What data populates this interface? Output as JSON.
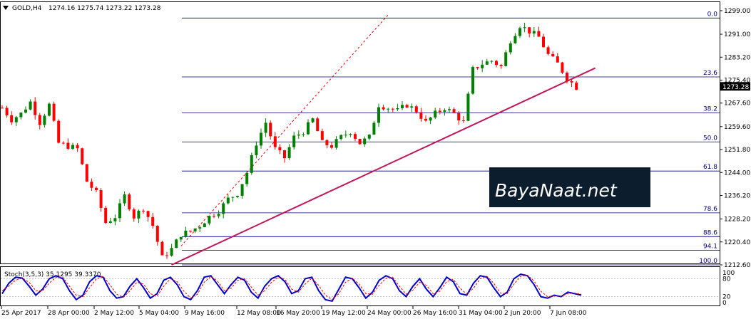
{
  "header": {
    "symbol": "GOLD,H4",
    "ohlc": "1274.16 1275.74 1273.22 1273.28"
  },
  "watermark": {
    "text": "BayaNaat.net"
  },
  "colors": {
    "background": "#ffffff",
    "bull_candle": "#008000",
    "bear_candle": "#ff0000",
    "trendline": "#c2185b",
    "fib_level": "#000080",
    "stoch_main": "#0000cc",
    "stoch_signal": "#ff0000",
    "price_label_bg": "#000000",
    "watermark_bg": "#0c1e2e"
  },
  "icons": {
    "collapse": "triangle-down-icon"
  },
  "chart_data": [
    {
      "type": "candlestick",
      "symbol": "GOLD",
      "timeframe": "H4",
      "y_axis_ticks": [
        "1299.00",
        "1291.00",
        "1283.20",
        "1275.40",
        "1267.60",
        "1259.60",
        "1251.80",
        "1244.00",
        "1236.20",
        "1228.20",
        "1220.40",
        "1212.60"
      ],
      "ylim": [
        1212.6,
        1299.0
      ],
      "current_price": "1273.28",
      "x_tick_labels": [
        "25 Apr 2017",
        "28 Apr 00:00",
        "2 May 12:00",
        "5 May 04:00",
        "9 May 16:00",
        "12 May 08:00",
        "16 May 20:00",
        "19 May 12:00",
        "24 May 00:00",
        "26 May 16:00",
        "31 May 04:00",
        "2 Jun 20:00",
        "7 Jun 08:00"
      ],
      "fibonacci_levels": [
        {
          "label": "0.0",
          "price": 1296.5
        },
        {
          "label": "23.6",
          "price": 1276.5
        },
        {
          "label": "38.2",
          "price": 1264.3
        },
        {
          "label": "50.0",
          "price": 1254.4
        },
        {
          "label": "61.8",
          "price": 1244.5
        },
        {
          "label": "78.6",
          "price": 1230.3
        },
        {
          "label": "88.6",
          "price": 1222.2
        },
        {
          "label": "94.1",
          "price": 1217.6
        },
        {
          "label": "100.0",
          "price": 1212.6
        }
      ],
      "close_path": [
        [
          0,
          1266
        ],
        [
          2,
          1262
        ],
        [
          4,
          1264
        ],
        [
          6,
          1268
        ],
        [
          8,
          1261
        ],
        [
          10,
          1267
        ],
        [
          12,
          1254
        ],
        [
          14,
          1253
        ],
        [
          16,
          1252
        ],
        [
          18,
          1241
        ],
        [
          20,
          1237
        ],
        [
          22,
          1227
        ],
        [
          24,
          1229
        ],
        [
          26,
          1236
        ],
        [
          28,
          1229
        ],
        [
          30,
          1232
        ],
        [
          32,
          1226
        ],
        [
          34,
          1215
        ],
        [
          36,
          1218
        ],
        [
          38,
          1223
        ],
        [
          40,
          1224
        ],
        [
          42,
          1226
        ],
        [
          44,
          1229
        ],
        [
          46,
          1231
        ],
        [
          48,
          1235
        ],
        [
          50,
          1237
        ],
        [
          52,
          1244
        ],
        [
          54,
          1254
        ],
        [
          56,
          1261
        ],
        [
          58,
          1252
        ],
        [
          60,
          1249
        ],
        [
          62,
          1256
        ],
        [
          64,
          1258
        ],
        [
          66,
          1262
        ],
        [
          68,
          1254
        ],
        [
          70,
          1253
        ],
        [
          72,
          1256
        ],
        [
          74,
          1258
        ],
        [
          76,
          1254
        ],
        [
          78,
          1256
        ],
        [
          80,
          1267
        ],
        [
          82,
          1266
        ],
        [
          84,
          1265
        ],
        [
          86,
          1267
        ],
        [
          88,
          1265
        ],
        [
          90,
          1261
        ],
        [
          92,
          1264
        ],
        [
          94,
          1266
        ],
        [
          96,
          1264
        ],
        [
          98,
          1261
        ],
        [
          100,
          1279
        ],
        [
          102,
          1281
        ],
        [
          104,
          1282
        ],
        [
          106,
          1280
        ],
        [
          108,
          1289
        ],
        [
          110,
          1294
        ],
        [
          112,
          1292
        ],
        [
          114,
          1290
        ],
        [
          116,
          1284
        ],
        [
          118,
          1281
        ],
        [
          120,
          1276
        ],
        [
          122,
          1273
        ]
      ],
      "trendline": {
        "from": [
          36,
          1212.6
        ],
        "to": [
          126,
          1279.5
        ]
      },
      "projection_line": {
        "from": [
          38,
          1219
        ],
        "to": [
          82,
          1297.6
        ]
      }
    },
    {
      "type": "line",
      "indicator": "Stochastic",
      "label": "Stoch(3,5,3) 35.1295 39.3370",
      "y_axis_ticks": [
        "100",
        "80",
        "20",
        "0"
      ],
      "ylim": [
        0,
        100
      ],
      "levels": [
        80,
        20
      ],
      "series": [
        {
          "values": [
            30,
            65,
            85,
            82,
            55,
            25,
            45,
            80,
            90,
            80,
            40,
            10,
            25,
            70,
            90,
            85,
            40,
            15,
            20,
            55,
            80,
            50,
            15,
            30,
            75,
            85,
            60,
            20,
            10,
            40,
            85,
            90,
            60,
            30,
            60,
            85,
            75,
            35,
            15,
            55,
            80,
            90,
            70,
            30,
            40,
            80,
            85,
            40,
            10,
            5,
            45,
            85,
            80,
            50,
            15,
            35,
            75,
            90,
            80,
            40,
            20,
            55,
            80,
            45,
            20,
            50,
            85,
            70,
            30,
            25,
            65,
            90,
            85,
            50,
            20,
            35,
            80,
            95,
            90,
            60,
            20,
            15,
            25,
            20,
            35,
            30,
            25
          ]
        },
        {
          "values": [
            40,
            55,
            75,
            82,
            68,
            40,
            40,
            65,
            85,
            85,
            55,
            25,
            20,
            50,
            80,
            88,
            60,
            28,
            18,
            40,
            68,
            62,
            30,
            22,
            55,
            80,
            70,
            38,
            15,
            28,
            68,
            88,
            72,
            40,
            48,
            75,
            80,
            52,
            25,
            40,
            68,
            85,
            78,
            45,
            35,
            62,
            82,
            58,
            25,
            10,
            30,
            68,
            82,
            62,
            30,
            28,
            58,
            82,
            85,
            55,
            28,
            42,
            68,
            58,
            30,
            38,
            70,
            78,
            48,
            28,
            48,
            80,
            88,
            65,
            32,
            30,
            62,
            88,
            92,
            72,
            38,
            20,
            22,
            22,
            30,
            32,
            28
          ]
        }
      ]
    }
  ]
}
